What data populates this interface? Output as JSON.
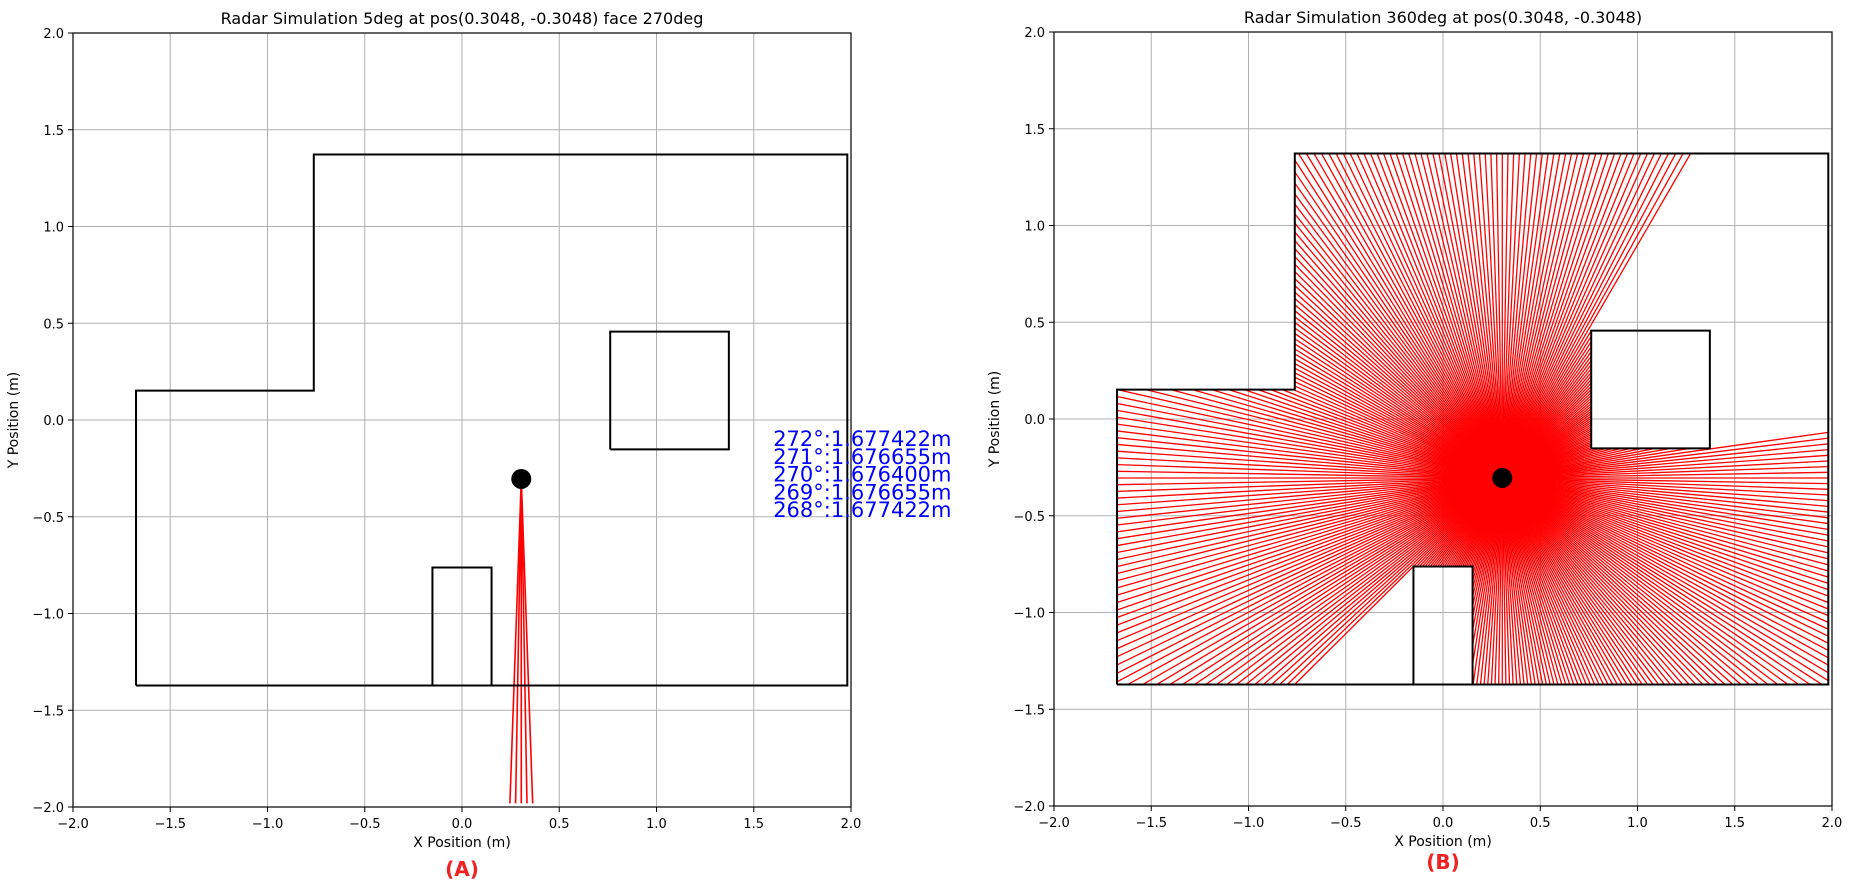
{
  "colors": {
    "ray": "#ff0000",
    "wall": "#000000",
    "radar": "#000000",
    "annotation": "#0000ff",
    "panel_label": "#ee2222",
    "grid": "#b0b0b0"
  },
  "chart_data": [
    {
      "type": "line",
      "title": "Radar Simulation 5deg at pos(0.3048, -0.3048) face 270deg",
      "xlabel": "X Position (m)",
      "ylabel": "Y Position (m)",
      "panel_label": "(A)",
      "xlim": [
        -2.0,
        2.0
      ],
      "ylim": [
        -2.0,
        2.0
      ],
      "xticks": [
        "−2.0",
        "−1.5",
        "−1.0",
        "−0.5",
        "0.0",
        "0.5",
        "1.0",
        "1.5",
        "2.0"
      ],
      "yticks": [
        "−2.0",
        "−1.5",
        "−1.0",
        "−0.5",
        "0.0",
        "0.5",
        "1.0",
        "1.5",
        "2.0"
      ],
      "grid": true,
      "radar_position": [
        0.3048,
        -0.3048
      ],
      "room_outline": [
        [
          -1.676,
          -1.372
        ],
        [
          -1.676,
          0.152
        ],
        [
          -0.762,
          0.152
        ],
        [
          -0.762,
          1.372
        ],
        [
          1.981,
          1.372
        ],
        [
          1.981,
          -1.372
        ],
        [
          -1.676,
          -1.372
        ]
      ],
      "obstacles": [
        [
          [
            0.762,
            -0.152
          ],
          [
            1.372,
            -0.152
          ],
          [
            1.372,
            0.457
          ],
          [
            0.762,
            0.457
          ],
          [
            0.762,
            -0.152
          ]
        ],
        [
          [
            -0.152,
            -1.372
          ],
          [
            -0.152,
            -0.762
          ],
          [
            0.152,
            -0.762
          ],
          [
            0.152,
            -1.372
          ]
        ]
      ],
      "rays": [
        {
          "angle_deg": 272,
          "range_m": 1.677422
        },
        {
          "angle_deg": 271,
          "range_m": 1.676655
        },
        {
          "angle_deg": 270,
          "range_m": 1.6764
        },
        {
          "angle_deg": 269,
          "range_m": 1.676655
        },
        {
          "angle_deg": 268,
          "range_m": 1.677422
        }
      ],
      "annotations": [
        "272°:1.677422m",
        "271°:1.676655m",
        "270°:1.676400m",
        "269°:1.676655m",
        "268°:1.677422m"
      ]
    },
    {
      "type": "line",
      "title": "Radar Simulation 360deg at pos(0.3048, -0.3048)",
      "xlabel": "X Position (m)",
      "ylabel": "Y Position (m)",
      "panel_label": "(B)",
      "xlim": [
        -2.0,
        2.0
      ],
      "ylim": [
        -2.0,
        2.0
      ],
      "xticks": [
        "−2.0",
        "−1.5",
        "−1.0",
        "−0.5",
        "0.0",
        "0.5",
        "1.0",
        "1.5",
        "2.0"
      ],
      "yticks": [
        "−2.0",
        "−1.5",
        "−1.0",
        "−0.5",
        "0.0",
        "0.5",
        "1.0",
        "1.5",
        "2.0"
      ],
      "grid": true,
      "radar_position": [
        0.3048,
        -0.3048
      ],
      "ray_angle_step_deg": 1,
      "room_outline": [
        [
          -1.676,
          -1.372
        ],
        [
          -1.676,
          0.152
        ],
        [
          -0.762,
          0.152
        ],
        [
          -0.762,
          1.372
        ],
        [
          1.981,
          1.372
        ],
        [
          1.981,
          -1.372
        ],
        [
          -1.676,
          -1.372
        ]
      ],
      "obstacles": [
        [
          [
            0.762,
            -0.152
          ],
          [
            1.372,
            -0.152
          ],
          [
            1.372,
            0.457
          ],
          [
            0.762,
            0.457
          ],
          [
            0.762,
            -0.152
          ]
        ],
        [
          [
            -0.152,
            -1.372
          ],
          [
            -0.152,
            -0.762
          ],
          [
            0.152,
            -0.762
          ],
          [
            0.152,
            -1.372
          ]
        ]
      ]
    }
  ]
}
